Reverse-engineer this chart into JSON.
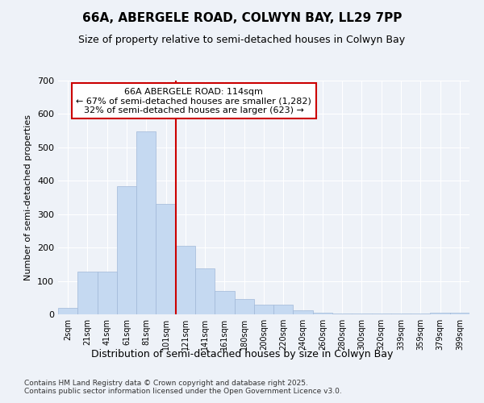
{
  "title": "66A, ABERGELE ROAD, COLWYN BAY, LL29 7PP",
  "subtitle": "Size of property relative to semi-detached houses in Colwyn Bay",
  "xlabel": "Distribution of semi-detached houses by size in Colwyn Bay",
  "ylabel": "Number of semi-detached properties",
  "categories": [
    "2sqm",
    "21sqm",
    "41sqm",
    "61sqm",
    "81sqm",
    "101sqm",
    "121sqm",
    "141sqm",
    "161sqm",
    "180sqm",
    "200sqm",
    "220sqm",
    "240sqm",
    "260sqm",
    "280sqm",
    "300sqm",
    "320sqm",
    "339sqm",
    "359sqm",
    "379sqm",
    "399sqm"
  ],
  "values": [
    20,
    128,
    128,
    385,
    548,
    330,
    205,
    137,
    70,
    45,
    30,
    28,
    12,
    5,
    2,
    2,
    2,
    2,
    2,
    5,
    5
  ],
  "bar_color": "#c5d9f1",
  "bar_edge_color": "#a0b8d8",
  "background_color": "#eef2f8",
  "grid_color": "#ffffff",
  "annotation_text1": "66A ABERGELE ROAD: 114sqm",
  "annotation_text2": "← 67% of semi-detached houses are smaller (1,282)",
  "annotation_text3": "32% of semi-detached houses are larger (623) →",
  "annotation_box_color": "#ffffff",
  "annotation_border_color": "#cc0000",
  "vline_color": "#cc0000",
  "vline_pos": 5.5,
  "ylim": [
    0,
    700
  ],
  "yticks": [
    0,
    100,
    200,
    300,
    400,
    500,
    600,
    700
  ],
  "footnote1": "Contains HM Land Registry data © Crown copyright and database right 2025.",
  "footnote2": "Contains public sector information licensed under the Open Government Licence v3.0.",
  "title_fontsize": 11,
  "subtitle_fontsize": 9,
  "ylabel_fontsize": 8,
  "xlabel_fontsize": 9,
  "tick_fontsize": 7,
  "footnote_fontsize": 6.5
}
